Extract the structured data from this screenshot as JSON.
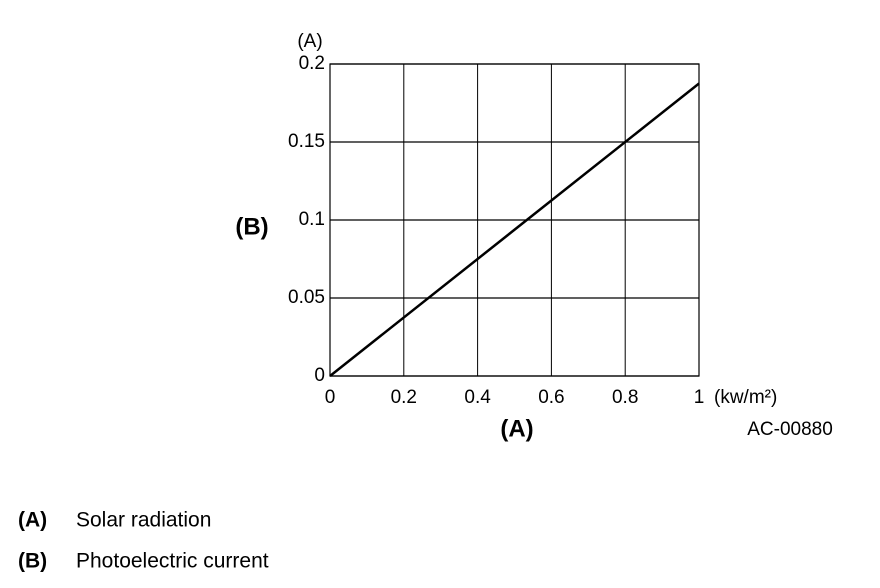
{
  "chart_data": {
    "type": "line",
    "y_unit": "(A)",
    "x_unit": "(kw/m²)",
    "xlabel": "(A)",
    "ylabel": "(B)",
    "annotation": "AC-00880",
    "x": [
      0,
      1
    ],
    "series": [
      {
        "color": "#000000",
        "values": [
          0,
          0.1875
        ]
      }
    ],
    "xlim": [
      0,
      1
    ],
    "ylim": [
      0,
      0.2
    ],
    "xticks": [
      0,
      0.2,
      0.4,
      0.6,
      0.8,
      1
    ],
    "yticks": [
      0,
      0.05,
      0.1,
      0.15,
      0.2
    ],
    "grid": true
  },
  "legend": [
    {
      "key": "(A)",
      "text": "Solar radiation"
    },
    {
      "key": "(B)",
      "text": "Photoelectric current"
    }
  ]
}
